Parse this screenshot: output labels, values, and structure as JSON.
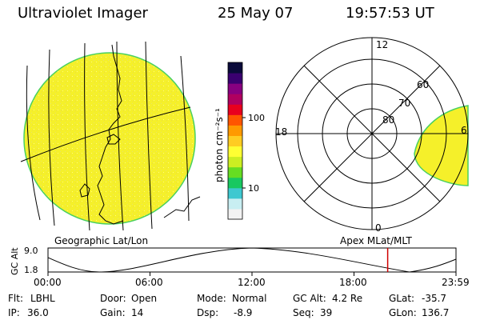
{
  "header": {
    "instrument": "Ultraviolet Imager",
    "date": "25 May 07",
    "time": "19:57:53 UT"
  },
  "colorbar": {
    "unit_label": "photon cm⁻²s⁻¹",
    "tick_labels": [
      "100",
      "10"
    ],
    "colors": [
      "#f2f2f2",
      "#c8eef2",
      "#3ec8d0",
      "#18c860",
      "#66dd22",
      "#ccee22",
      "#ffff33",
      "#ffcc22",
      "#ff9900",
      "#ff5500",
      "#e8001e",
      "#b00060",
      "#880080",
      "#3a0070",
      "#0a0a3a"
    ]
  },
  "left_panel": {
    "label": "Geographic Lat/Lon",
    "image_colors": {
      "fill": "#f5f02a",
      "speckle": "#e8e070",
      "limb": "#48d060"
    }
  },
  "right_panel": {
    "label": "Apex MLat/MLT",
    "lat_labels": [
      "80",
      "70",
      "60"
    ],
    "mlt_labels": [
      "12",
      "18",
      "6",
      "0"
    ],
    "image_colors": {
      "fill": "#f5f02a",
      "limb": "#48d060"
    }
  },
  "altitude_plot": {
    "ylabel": "GC Alt",
    "y_ticks": [
      "9.0",
      "1.8"
    ],
    "x_ticks": [
      "00:00",
      "06:00",
      "12:00",
      "18:00",
      "23:59"
    ],
    "marker_color": "#d00000",
    "marker_time_hours": 19.965
  },
  "status": {
    "row1": [
      {
        "label": "Flt:",
        "value": "LBHL"
      },
      {
        "label": "Door:",
        "value": "Open"
      },
      {
        "label": "Mode:",
        "value": "Normal"
      },
      {
        "label": "GC Alt:",
        "value": "4.2 Re"
      },
      {
        "label": "GLat:",
        "value": "-35.7"
      }
    ],
    "row2": [
      {
        "label": "IP:",
        "value": "36.0"
      },
      {
        "label": "Gain:",
        "value": "14"
      },
      {
        "label": "Dsp:",
        "value": "-8.9"
      },
      {
        "label": "Seq:",
        "value": "39"
      },
      {
        "label": "GLon:",
        "value": "136.7"
      }
    ]
  }
}
